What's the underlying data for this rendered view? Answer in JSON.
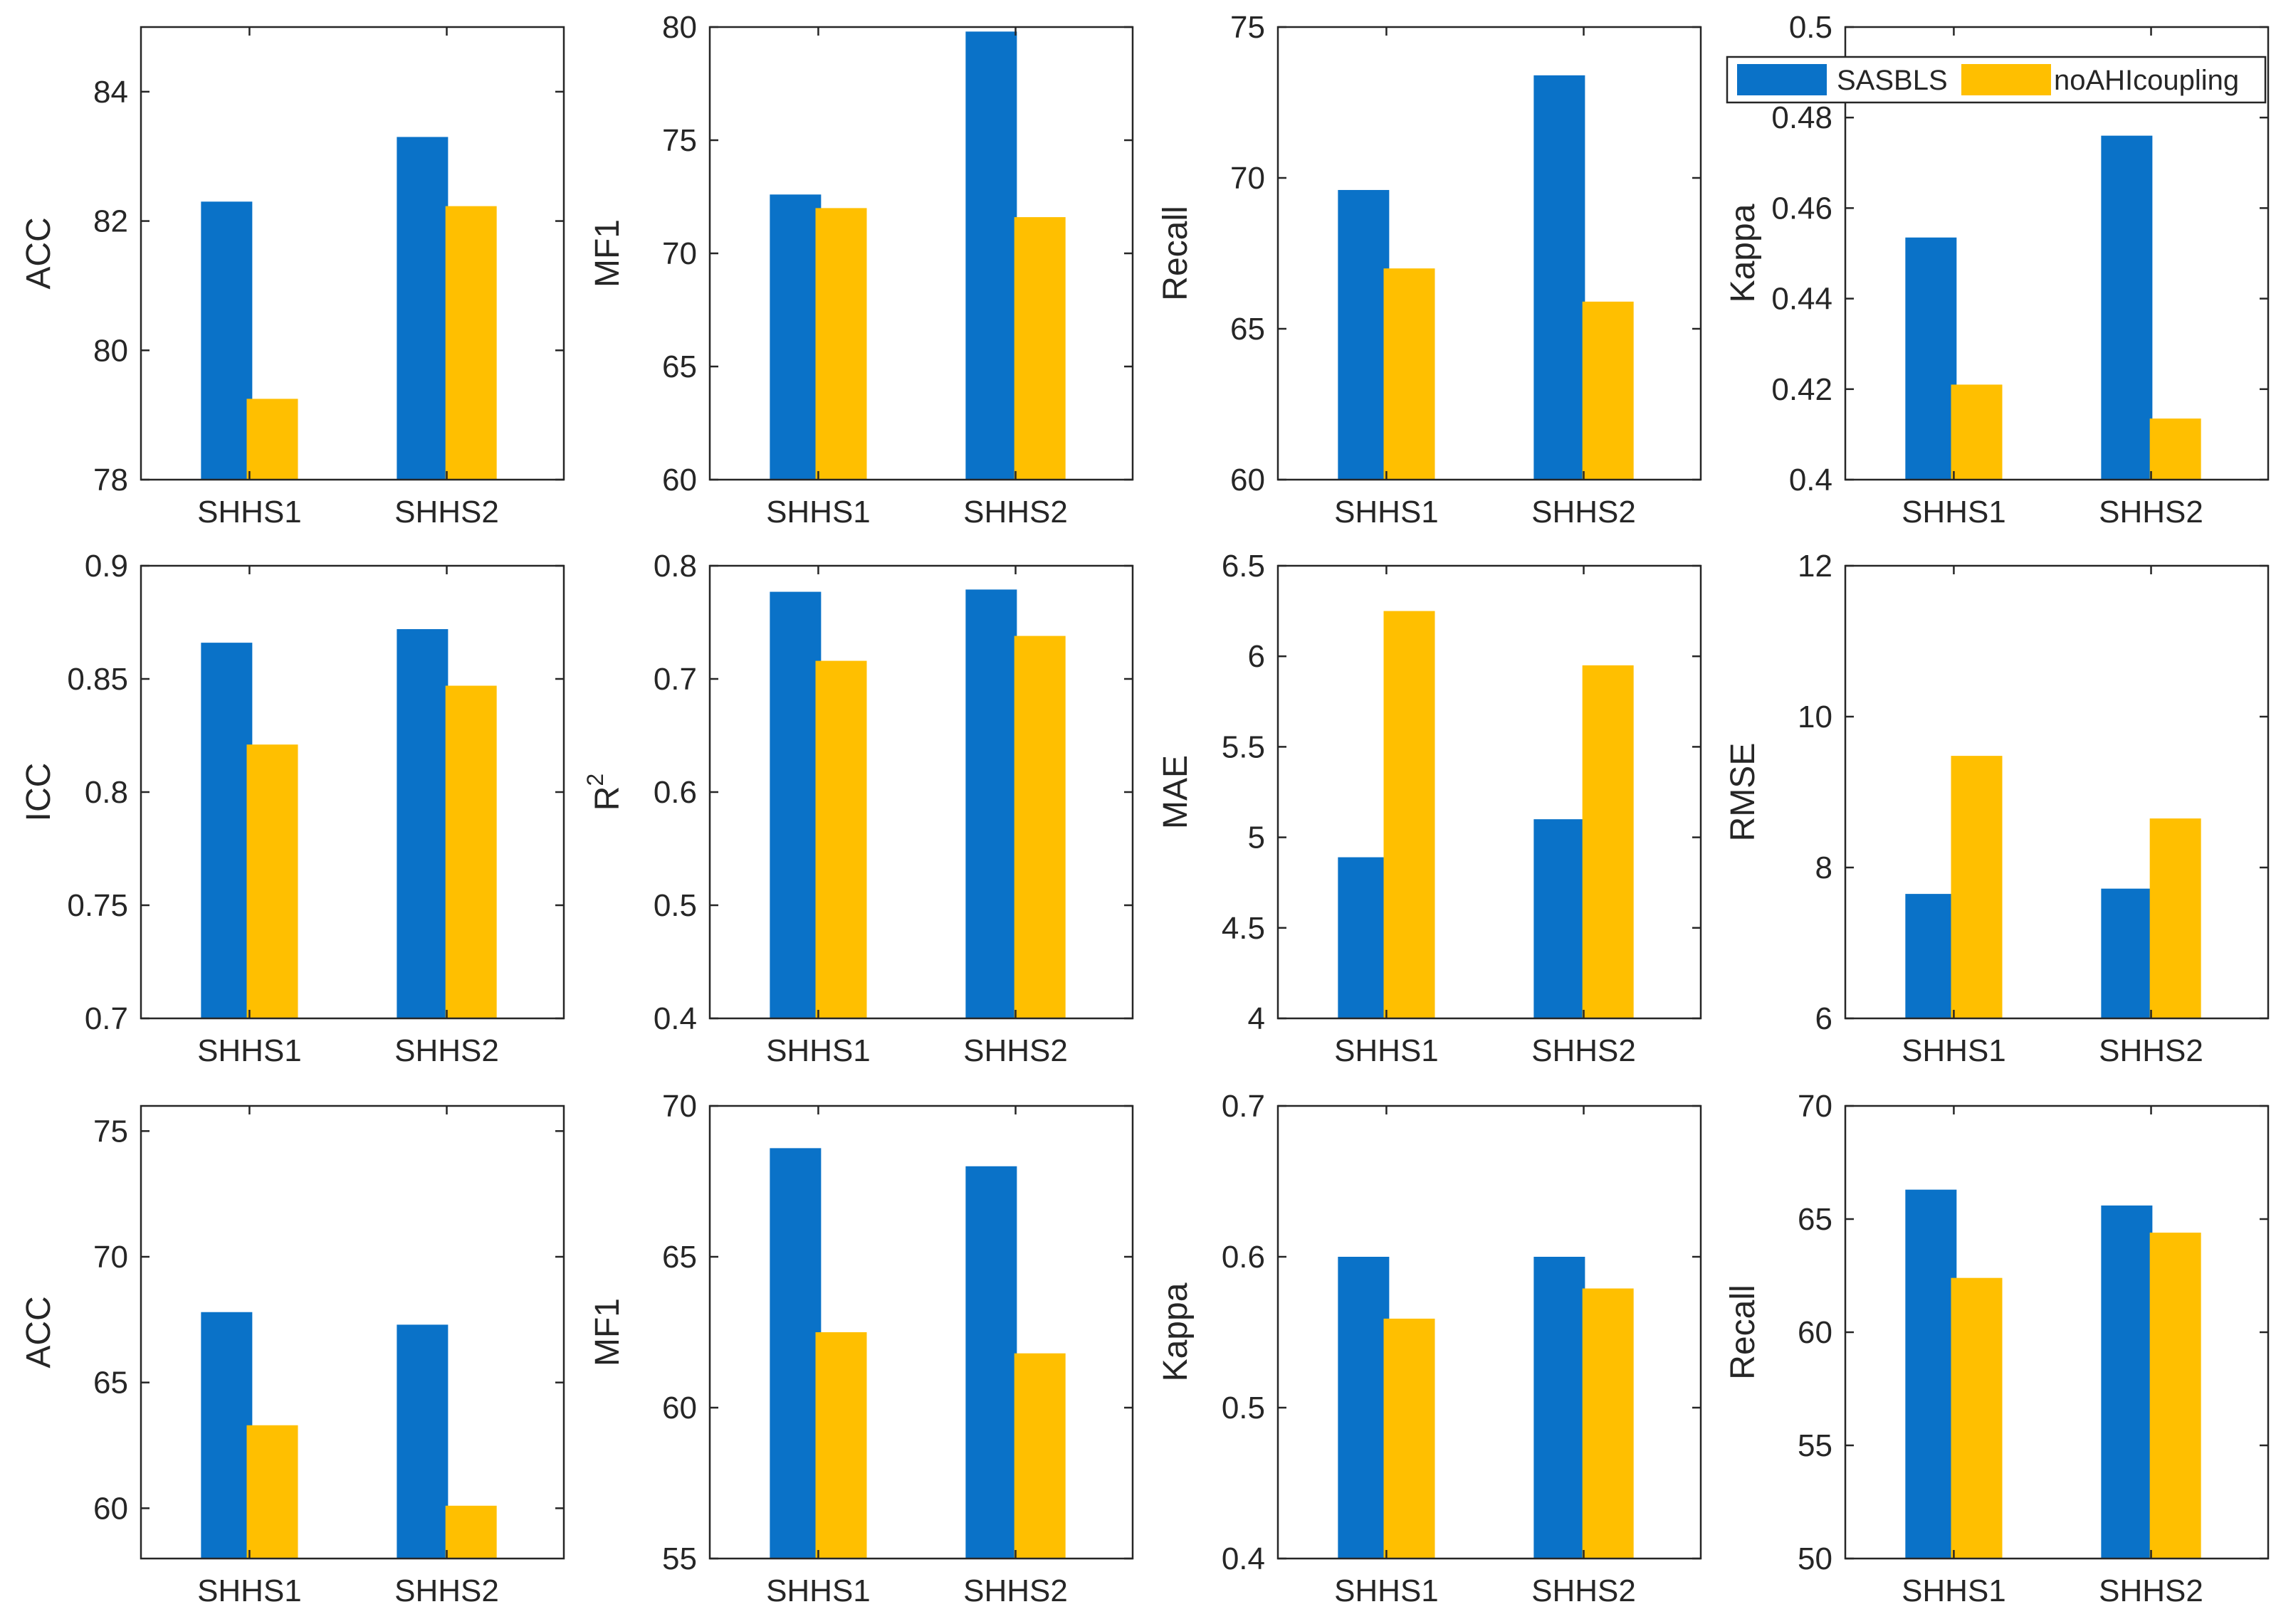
{
  "colors": {
    "SASBLS": "#0a72c8",
    "noAHIcoupling": "#ffbf00",
    "axis": "#262626"
  },
  "legend": {
    "placement": "top-right of last panel in first row",
    "items": [
      "SASBLS",
      "noAHIcoupling"
    ]
  },
  "chart_data": [
    {
      "type": "bar",
      "ylabel": "ACC",
      "categories": [
        "SHHS1",
        "SHHS2"
      ],
      "ylim": [
        78,
        85
      ],
      "yticks": [
        "78",
        "80",
        "82",
        "84"
      ],
      "series": [
        {
          "name": "SASBLS",
          "values": [
            82.3,
            83.3
          ]
        },
        {
          "name": "noAHIcoupling",
          "values": [
            79.25,
            82.23
          ]
        }
      ]
    },
    {
      "type": "bar",
      "ylabel": "MF1",
      "categories": [
        "SHHS1",
        "SHHS2"
      ],
      "ylim": [
        60,
        80
      ],
      "yticks": [
        "60",
        "65",
        "70",
        "75",
        "80"
      ],
      "series": [
        {
          "name": "SASBLS",
          "values": [
            72.6,
            79.8
          ]
        },
        {
          "name": "noAHIcoupling",
          "values": [
            72.0,
            71.6
          ]
        }
      ]
    },
    {
      "type": "bar",
      "ylabel": "Recall",
      "categories": [
        "SHHS1",
        "SHHS2"
      ],
      "ylim": [
        60,
        75
      ],
      "yticks": [
        "60",
        "65",
        "70",
        "75"
      ],
      "series": [
        {
          "name": "SASBLS",
          "values": [
            69.6,
            73.4
          ]
        },
        {
          "name": "noAHIcoupling",
          "values": [
            67.0,
            65.9
          ]
        }
      ]
    },
    {
      "type": "bar",
      "ylabel": "Kappa",
      "categories": [
        "SHHS1",
        "SHHS2"
      ],
      "ylim": [
        0.4,
        0.5
      ],
      "yticks": [
        "0.4",
        "0.42",
        "0.44",
        "0.46",
        "0.48",
        "0.5"
      ],
      "series": [
        {
          "name": "SASBLS",
          "values": [
            0.4535,
            0.476
          ]
        },
        {
          "name": "noAHIcoupling",
          "values": [
            0.421,
            0.4135
          ]
        }
      ]
    },
    {
      "type": "bar",
      "ylabel": "ICC",
      "categories": [
        "SHHS1",
        "SHHS2"
      ],
      "ylim": [
        0.7,
        0.9
      ],
      "yticks": [
        "0.7",
        "0.75",
        "0.8",
        "0.85",
        "0.9"
      ],
      "series": [
        {
          "name": "SASBLS",
          "values": [
            0.866,
            0.872
          ]
        },
        {
          "name": "noAHIcoupling",
          "values": [
            0.821,
            0.847
          ]
        }
      ]
    },
    {
      "type": "bar",
      "ylabel": "R",
      "ylabel_sup": "2",
      "categories": [
        "SHHS1",
        "SHHS2"
      ],
      "ylim": [
        0.4,
        0.8
      ],
      "yticks": [
        "0.4",
        "0.5",
        "0.6",
        "0.7",
        "0.8"
      ],
      "series": [
        {
          "name": "SASBLS",
          "values": [
            0.777,
            0.779
          ]
        },
        {
          "name": "noAHIcoupling",
          "values": [
            0.716,
            0.738
          ]
        }
      ]
    },
    {
      "type": "bar",
      "ylabel": "MAE",
      "categories": [
        "SHHS1",
        "SHHS2"
      ],
      "ylim": [
        4,
        6.5
      ],
      "yticks": [
        "4",
        "4.5",
        "5",
        "5.5",
        "6",
        "6.5"
      ],
      "series": [
        {
          "name": "SASBLS",
          "values": [
            4.89,
            5.1
          ]
        },
        {
          "name": "noAHIcoupling",
          "values": [
            6.25,
            5.95
          ]
        }
      ]
    },
    {
      "type": "bar",
      "ylabel": "RMSE",
      "categories": [
        "SHHS1",
        "SHHS2"
      ],
      "ylim": [
        6,
        12
      ],
      "yticks": [
        "6",
        "8",
        "10",
        "12"
      ],
      "series": [
        {
          "name": "SASBLS",
          "values": [
            7.65,
            7.72
          ]
        },
        {
          "name": "noAHIcoupling",
          "values": [
            9.48,
            8.65
          ]
        }
      ]
    },
    {
      "type": "bar",
      "ylabel": "ACC",
      "categories": [
        "SHHS1",
        "SHHS2"
      ],
      "ylim": [
        58,
        76
      ],
      "yticks": [
        "60",
        "65",
        "70",
        "75"
      ],
      "series": [
        {
          "name": "SASBLS",
          "values": [
            67.8,
            67.3
          ]
        },
        {
          "name": "noAHIcoupling",
          "values": [
            63.3,
            60.1
          ]
        }
      ]
    },
    {
      "type": "bar",
      "ylabel": "MF1",
      "categories": [
        "SHHS1",
        "SHHS2"
      ],
      "ylim": [
        55,
        70
      ],
      "yticks": [
        "55",
        "60",
        "65",
        "70"
      ],
      "series": [
        {
          "name": "SASBLS",
          "values": [
            68.6,
            68.0
          ]
        },
        {
          "name": "noAHIcoupling",
          "values": [
            62.5,
            61.8
          ]
        }
      ]
    },
    {
      "type": "bar",
      "ylabel": "Kappa",
      "categories": [
        "SHHS1",
        "SHHS2"
      ],
      "ylim": [
        0.4,
        0.7
      ],
      "yticks": [
        "0.4",
        "0.5",
        "0.6",
        "0.7"
      ],
      "series": [
        {
          "name": "SASBLS",
          "values": [
            0.6,
            0.6
          ]
        },
        {
          "name": "noAHIcoupling",
          "values": [
            0.559,
            0.579
          ]
        }
      ]
    },
    {
      "type": "bar",
      "ylabel": "Recall",
      "categories": [
        "SHHS1",
        "SHHS2"
      ],
      "ylim": [
        50,
        70
      ],
      "yticks": [
        "50",
        "55",
        "60",
        "65",
        "70"
      ],
      "series": [
        {
          "name": "SASBLS",
          "values": [
            66.3,
            65.6
          ]
        },
        {
          "name": "noAHIcoupling",
          "values": [
            62.4,
            64.4
          ]
        }
      ]
    }
  ]
}
